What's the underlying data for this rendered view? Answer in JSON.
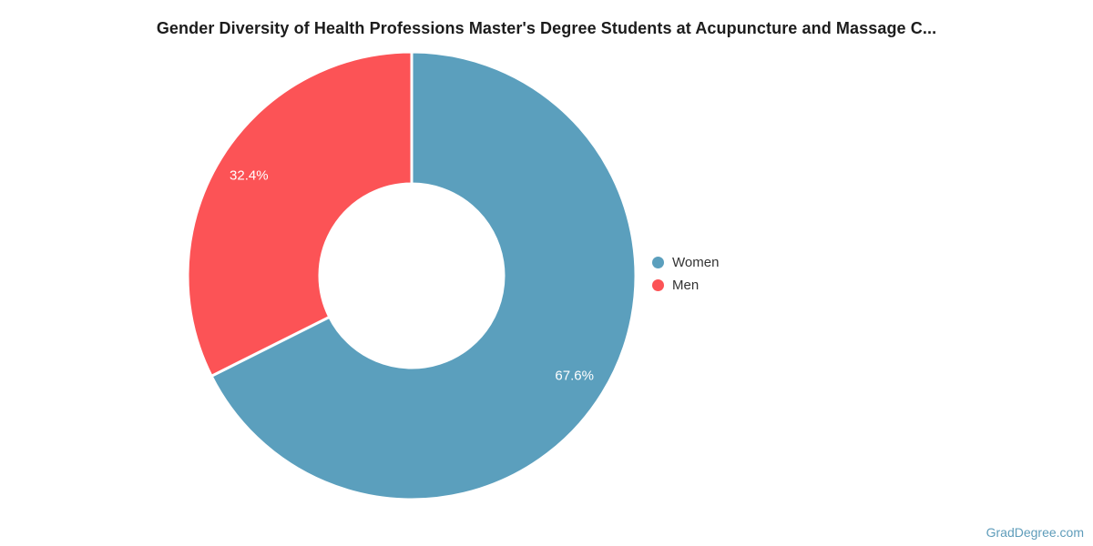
{
  "chart_data": {
    "type": "pie",
    "subtype": "donut",
    "title": "Gender Diversity of Health Professions Master's Degree Students at Acupuncture and Massage C...",
    "series": [
      {
        "name": "Women",
        "value": 67.6,
        "label": "67.6%",
        "color": "#5B9FBD"
      },
      {
        "name": "Men",
        "value": 32.4,
        "label": "32.4%",
        "color": "#FC5356"
      }
    ],
    "unit": "%",
    "start_angle_deg": 0,
    "direction": "clockwise",
    "inner_radius_ratio": 0.41,
    "slice_border_color": "#FFFFFF",
    "legend_position": "right",
    "label_color": "#FFFFFF"
  },
  "footer": {
    "watermark": "GradDegree.com"
  }
}
